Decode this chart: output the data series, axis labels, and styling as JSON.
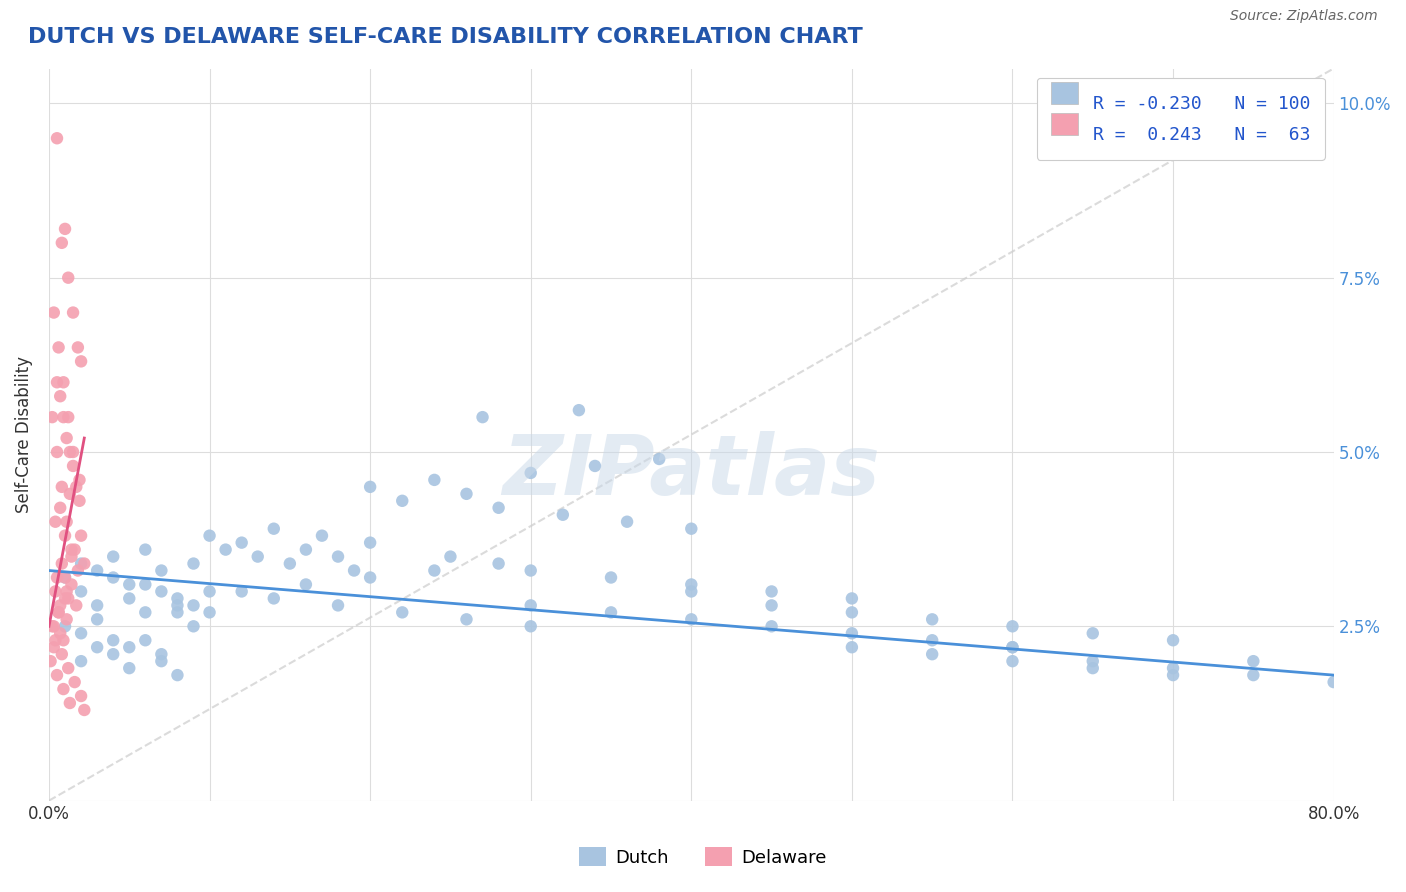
{
  "title": "DUTCH VS DELAWARE SELF-CARE DISABILITY CORRELATION CHART",
  "source": "Source: ZipAtlas.com",
  "xlabel": "",
  "ylabel": "Self-Care Disability",
  "xlim": [
    0.0,
    0.8
  ],
  "ylim": [
    0.0,
    0.105
  ],
  "ytick_labels": [
    "",
    "2.5%",
    "5.0%",
    "7.5%",
    "10.0%"
  ],
  "ytick_vals": [
    0.0,
    0.025,
    0.05,
    0.075,
    0.1
  ],
  "xtick_labels": [
    "0.0%",
    "",
    "",
    "",
    "",
    "",
    "",
    "",
    "80.0%"
  ],
  "xtick_vals": [
    0.0,
    0.1,
    0.2,
    0.3,
    0.4,
    0.5,
    0.6,
    0.7,
    0.8
  ],
  "dutch_color": "#a8c4e0",
  "delaware_color": "#f4a0b0",
  "dutch_line_color": "#4a90d9",
  "delaware_line_color": "#e05080",
  "trend_line_dashed_color": "#cccccc",
  "R_dutch": -0.23,
  "N_dutch": 100,
  "R_delaware": 0.243,
  "N_delaware": 63,
  "watermark": "ZIPatlas",
  "title_color": "#2255aa",
  "legend_R_color": "#000000",
  "legend_N_color": "#2255cc",
  "dutch_scatter_x": [
    0.02,
    0.03,
    0.04,
    0.05,
    0.06,
    0.07,
    0.08,
    0.09,
    0.1,
    0.01,
    0.02,
    0.03,
    0.04,
    0.05,
    0.06,
    0.07,
    0.08,
    0.09,
    0.02,
    0.03,
    0.04,
    0.05,
    0.06,
    0.07,
    0.08,
    0.01,
    0.02,
    0.03,
    0.04,
    0.05,
    0.06,
    0.07,
    0.08,
    0.09,
    0.1,
    0.1,
    0.11,
    0.12,
    0.13,
    0.14,
    0.15,
    0.16,
    0.17,
    0.18,
    0.19,
    0.2,
    0.12,
    0.14,
    0.16,
    0.18,
    0.2,
    0.22,
    0.24,
    0.26,
    0.28,
    0.3,
    0.2,
    0.22,
    0.24,
    0.26,
    0.28,
    0.3,
    0.32,
    0.34,
    0.36,
    0.38,
    0.4,
    0.25,
    0.3,
    0.35,
    0.4,
    0.45,
    0.5,
    0.3,
    0.35,
    0.4,
    0.45,
    0.5,
    0.55,
    0.6,
    0.4,
    0.45,
    0.5,
    0.55,
    0.6,
    0.65,
    0.7,
    0.5,
    0.55,
    0.6,
    0.65,
    0.7,
    0.75,
    0.6,
    0.65,
    0.7,
    0.75,
    0.8,
    0.33,
    0.27
  ],
  "dutch_scatter_y": [
    0.03,
    0.028,
    0.032,
    0.029,
    0.031,
    0.033,
    0.027,
    0.034,
    0.03,
    0.025,
    0.024,
    0.026,
    0.023,
    0.022,
    0.027,
    0.021,
    0.028,
    0.025,
    0.02,
    0.022,
    0.021,
    0.019,
    0.023,
    0.02,
    0.018,
    0.032,
    0.034,
    0.033,
    0.035,
    0.031,
    0.036,
    0.03,
    0.029,
    0.028,
    0.027,
    0.038,
    0.036,
    0.037,
    0.035,
    0.039,
    0.034,
    0.036,
    0.038,
    0.035,
    0.033,
    0.037,
    0.03,
    0.029,
    0.031,
    0.028,
    0.032,
    0.027,
    0.033,
    0.026,
    0.034,
    0.025,
    0.045,
    0.043,
    0.046,
    0.044,
    0.042,
    0.047,
    0.041,
    0.048,
    0.04,
    0.049,
    0.039,
    0.035,
    0.033,
    0.032,
    0.031,
    0.03,
    0.029,
    0.028,
    0.027,
    0.026,
    0.025,
    0.024,
    0.023,
    0.022,
    0.03,
    0.028,
    0.027,
    0.026,
    0.025,
    0.024,
    0.023,
    0.022,
    0.021,
    0.02,
    0.019,
    0.018,
    0.02,
    0.022,
    0.02,
    0.019,
    0.018,
    0.017,
    0.056,
    0.055
  ],
  "delaware_scatter_x": [
    0.005,
    0.008,
    0.01,
    0.012,
    0.015,
    0.018,
    0.02,
    0.005,
    0.007,
    0.009,
    0.011,
    0.013,
    0.015,
    0.017,
    0.019,
    0.003,
    0.006,
    0.009,
    0.012,
    0.015,
    0.004,
    0.007,
    0.01,
    0.013,
    0.016,
    0.019,
    0.022,
    0.005,
    0.008,
    0.011,
    0.014,
    0.017,
    0.02,
    0.002,
    0.005,
    0.008,
    0.011,
    0.014,
    0.003,
    0.006,
    0.009,
    0.012,
    0.004,
    0.007,
    0.01,
    0.001,
    0.003,
    0.005,
    0.007,
    0.009,
    0.011,
    0.013,
    0.002,
    0.004,
    0.006,
    0.008,
    0.01,
    0.012,
    0.014,
    0.016,
    0.018,
    0.02,
    0.022
  ],
  "delaware_scatter_y": [
    0.095,
    0.08,
    0.082,
    0.075,
    0.07,
    0.065,
    0.063,
    0.06,
    0.058,
    0.055,
    0.052,
    0.05,
    0.048,
    0.045,
    0.043,
    0.07,
    0.065,
    0.06,
    0.055,
    0.05,
    0.04,
    0.042,
    0.038,
    0.044,
    0.036,
    0.046,
    0.034,
    0.032,
    0.034,
    0.03,
    0.036,
    0.028,
    0.038,
    0.055,
    0.05,
    0.045,
    0.04,
    0.035,
    0.025,
    0.027,
    0.023,
    0.029,
    0.03,
    0.028,
    0.032,
    0.02,
    0.022,
    0.018,
    0.024,
    0.016,
    0.026,
    0.014,
    0.025,
    0.023,
    0.027,
    0.021,
    0.029,
    0.019,
    0.031,
    0.017,
    0.033,
    0.015,
    0.013
  ]
}
